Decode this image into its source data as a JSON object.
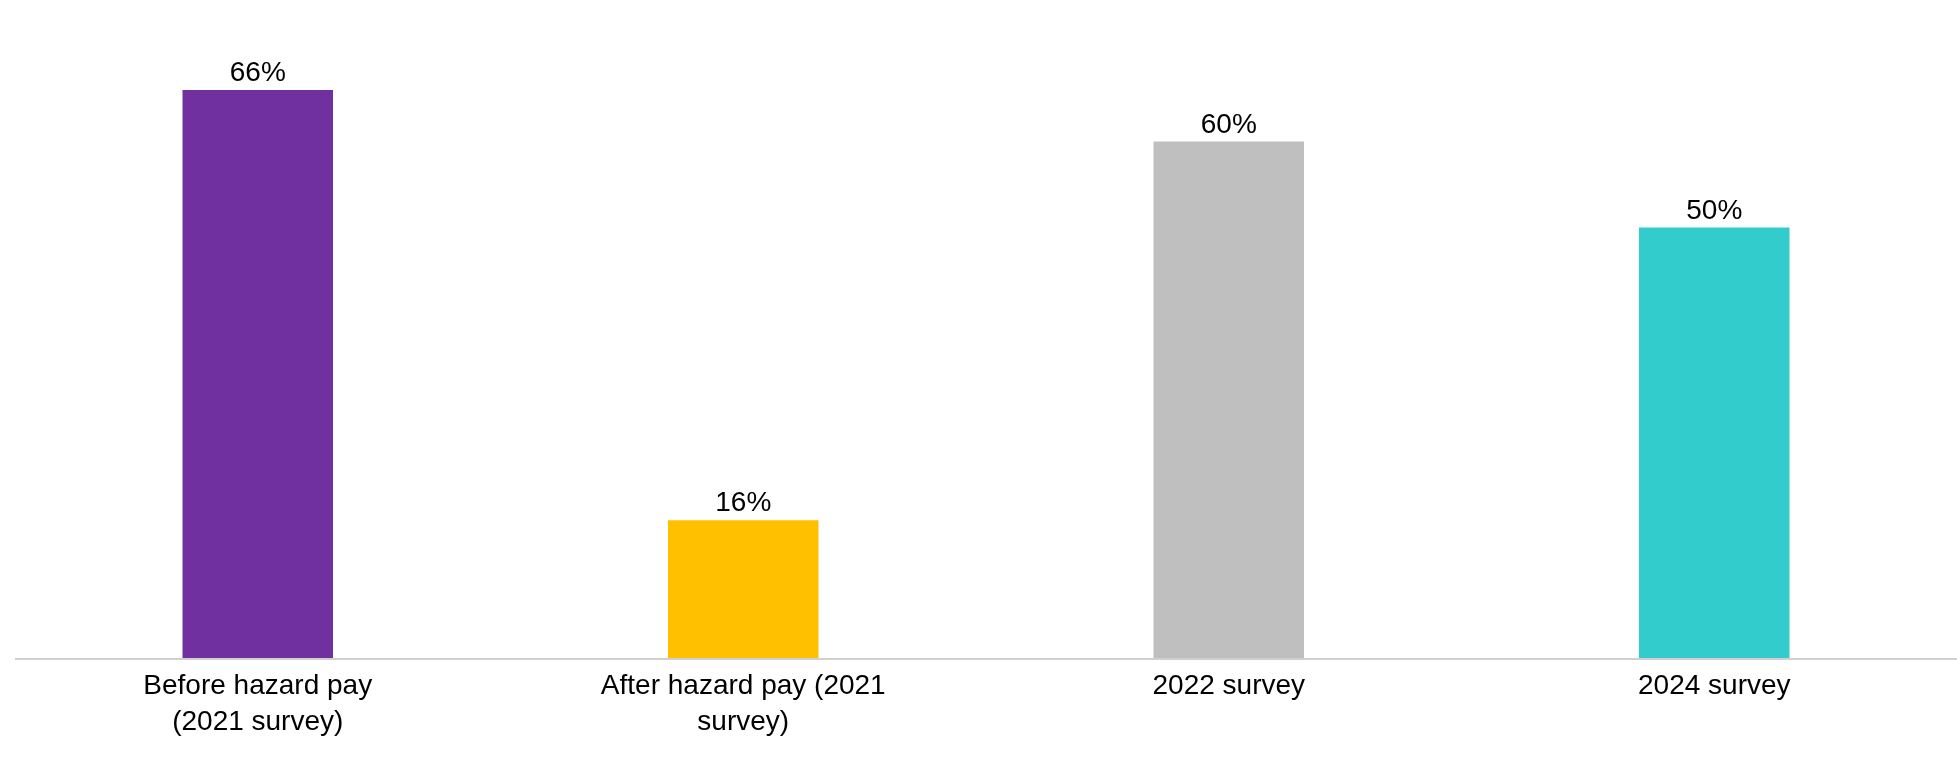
{
  "chart_data": {
    "type": "bar",
    "categories": [
      "Before hazard pay (2021 survey)",
      "After hazard pay (2021 survey)",
      "2022 survey",
      "2024 survey"
    ],
    "values": [
      66,
      16,
      60,
      50
    ],
    "value_labels": [
      "66%",
      "16%",
      "60%",
      "50%"
    ],
    "colors": [
      "#7030a0",
      "#ffc000",
      "#bfbfbf",
      "#33cccc"
    ]
  }
}
